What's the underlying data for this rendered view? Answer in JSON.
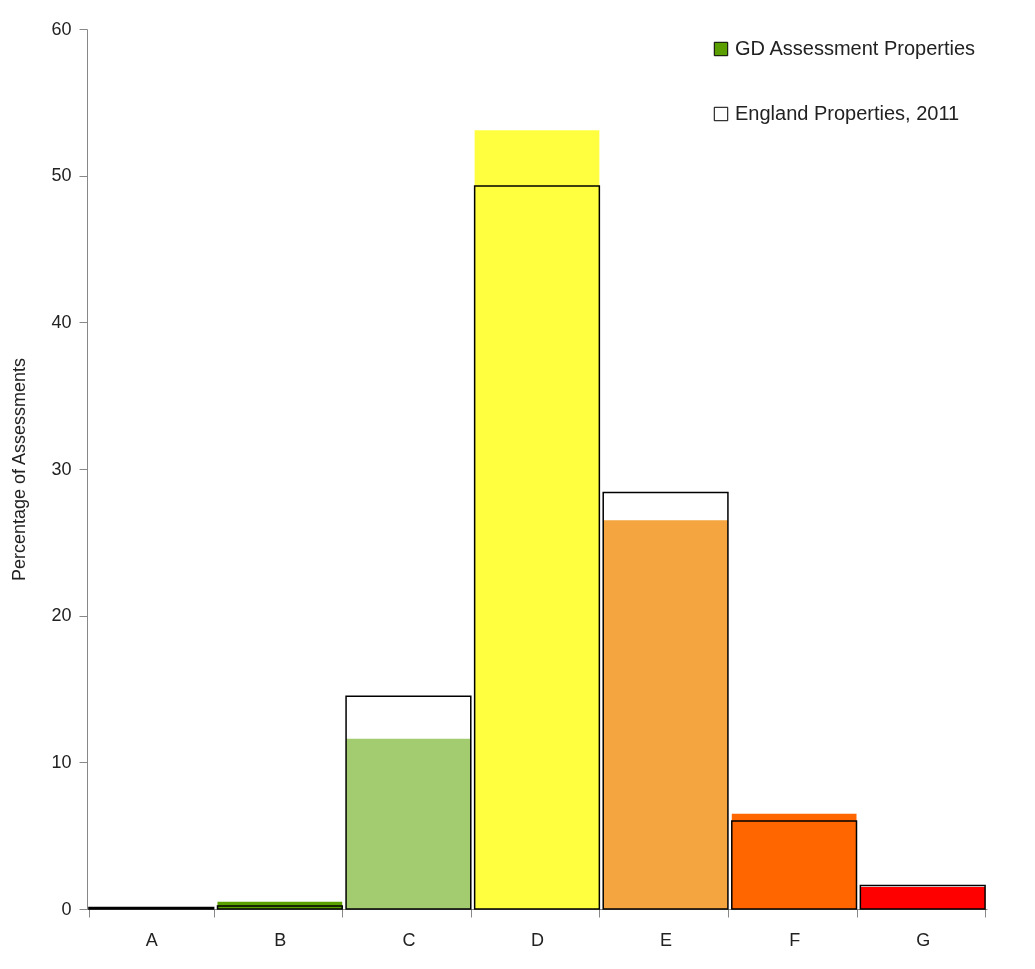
{
  "chart_data": {
    "type": "bar",
    "ylabel": "Percentage of Assessments",
    "categories": [
      "A",
      "B",
      "C",
      "D",
      "E",
      "F",
      "G"
    ],
    "series": [
      {
        "name": "GD Assessment Properties",
        "color": "#5a9e00",
        "colors": [
          "#00b050",
          "#5a9e00",
          "#a3cb70",
          "#ffff40",
          "#f5a540",
          "#ff6600",
          "#ff0000"
        ],
        "values": [
          0,
          0.5,
          11.6,
          53.1,
          26.5,
          6.5,
          1.5
        ]
      },
      {
        "name": "England Properties, 2011",
        "color": "#000000",
        "values": [
          0.1,
          0.2,
          14.5,
          49.3,
          28.4,
          6.0,
          1.6
        ]
      }
    ],
    "ylim": [
      0,
      60
    ],
    "yticks": [
      0,
      10,
      20,
      30,
      40,
      50,
      60
    ],
    "grid": false,
    "legend": "top right"
  }
}
